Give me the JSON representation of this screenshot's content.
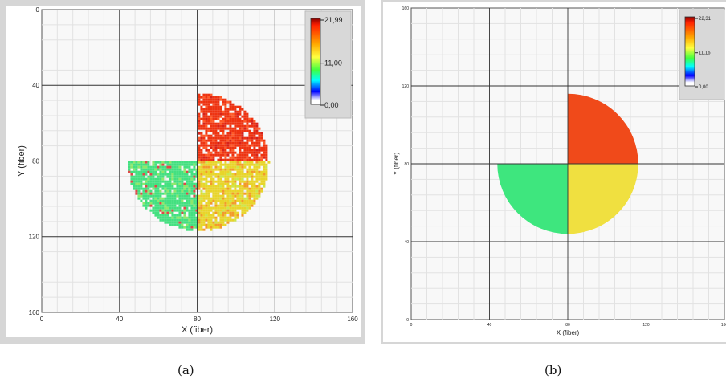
{
  "chart_data": [
    {
      "id": "a",
      "type": "heatmap",
      "xlabel": "X (fiber)",
      "ylabel": "Y (fiber)",
      "xlim": [
        0,
        160
      ],
      "ylim": [
        0,
        160
      ],
      "y_axis": "inverted",
      "x_ticks": [
        0,
        40,
        80,
        120,
        160
      ],
      "y_ticks": [
        0,
        40,
        80,
        120,
        160
      ],
      "colorbar": {
        "max_label": "21,99",
        "mid_label": "11,00",
        "min_label": "0,00",
        "max": 21.99,
        "min": 0
      },
      "grid": true,
      "legend_position": "top-right",
      "center": [
        80,
        80
      ],
      "radius": 36,
      "quadrants": [
        {
          "name": "upper-right",
          "approx_value": 21,
          "color": "#ee3311"
        },
        {
          "name": "lower-right",
          "approx_value": 15,
          "color": "#e8d52a"
        },
        {
          "name": "lower-left",
          "approx_value": 12,
          "color": "#44e080"
        }
      ],
      "caption": "(a)"
    },
    {
      "id": "b",
      "type": "heatmap",
      "xlabel": "X (fiber)",
      "ylabel": "Y (fiber)",
      "xlim": [
        0,
        160
      ],
      "ylim": [
        0,
        160
      ],
      "y_axis": "normal",
      "x_ticks": [
        0,
        40,
        80,
        120,
        160
      ],
      "y_ticks": [
        0,
        40,
        80,
        120,
        160
      ],
      "colorbar": {
        "max_label": "22,31",
        "mid_label": "11,16",
        "min_label": "0,00",
        "max": 22.31,
        "min": 0
      },
      "grid": true,
      "legend_position": "top-right",
      "center": [
        80,
        80
      ],
      "radius": 36,
      "quadrants": [
        {
          "name": "upper-right",
          "approx_value": 21,
          "color": "#f04a1a"
        },
        {
          "name": "lower-right",
          "approx_value": 15,
          "color": "#f0e040"
        },
        {
          "name": "lower-left",
          "approx_value": 12,
          "color": "#3ee67e"
        }
      ],
      "caption": "(b)"
    }
  ]
}
